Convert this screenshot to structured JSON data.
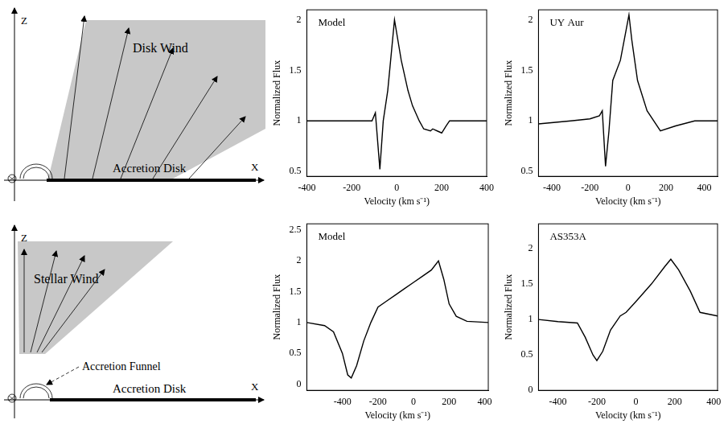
{
  "chart_data": [
    {
      "type": "line",
      "annotation": "Model",
      "x_label": "Velocity (km s⁻¹)",
      "y_label": "Normalized Flux",
      "color": "#000000",
      "grid": false,
      "x": [
        -400,
        -110,
        -95,
        -75,
        -60,
        -40,
        -10,
        20,
        50,
        70,
        100,
        120,
        150,
        160,
        180,
        200,
        220,
        235,
        400
      ],
      "values": [
        1.0,
        1.0,
        1.08,
        0.52,
        1.0,
        1.3,
        2.0,
        1.6,
        1.3,
        1.15,
        1.0,
        0.92,
        0.9,
        0.92,
        0.9,
        0.88,
        0.95,
        1.0,
        1.0
      ],
      "xlim": [
        -400,
        400
      ],
      "xticks": [
        -400,
        -200,
        0,
        200,
        400
      ],
      "ylim": [
        0.45,
        2.1
      ],
      "yticks": [
        0.5,
        1,
        1.5,
        2
      ]
    },
    {
      "type": "line",
      "annotation": "UY Aur",
      "x_label": "Velocity (km s⁻¹)",
      "y_label": "Normalized Flux",
      "color": "#000000",
      "grid": false,
      "x": [
        -470,
        -300,
        -200,
        -150,
        -135,
        -118,
        -100,
        -80,
        -40,
        -10,
        5,
        20,
        50,
        100,
        170,
        250,
        350,
        470
      ],
      "values": [
        0.97,
        1.0,
        1.02,
        1.05,
        1.1,
        0.55,
        0.9,
        1.4,
        1.6,
        1.9,
        2.05,
        1.8,
        1.4,
        1.1,
        0.9,
        0.95,
        1.0,
        1.0
      ],
      "xlim": [
        -470,
        470
      ],
      "xticks": [
        -400,
        -200,
        0,
        200,
        400
      ],
      "ylim": [
        0.45,
        2.1
      ],
      "yticks": [
        0.5,
        1,
        1.5,
        2
      ]
    },
    {
      "type": "line",
      "annotation": "Model",
      "x_label": "Velocity (km s⁻¹)",
      "y_label": "Normalized Flux",
      "color": "#000000",
      "grid": false,
      "x": [
        -600,
        -500,
        -450,
        -400,
        -370,
        -350,
        -320,
        -280,
        -240,
        -200,
        -150,
        -100,
        -50,
        0,
        50,
        100,
        140,
        170,
        200,
        240,
        300,
        420
      ],
      "values": [
        1.0,
        0.95,
        0.85,
        0.5,
        0.15,
        0.1,
        0.3,
        0.7,
        1.0,
        1.25,
        1.35,
        1.45,
        1.55,
        1.65,
        1.75,
        1.85,
        2.0,
        1.7,
        1.3,
        1.1,
        1.02,
        1.0
      ],
      "xlim": [
        -600,
        420
      ],
      "xticks": [
        -400,
        -200,
        0,
        200,
        400
      ],
      "ylim": [
        -0.1,
        2.6
      ],
      "yticks": [
        0,
        0.5,
        1,
        1.5,
        2,
        2.5
      ]
    },
    {
      "type": "line",
      "annotation": "AS353A",
      "x_label": "Velocity (km s⁻¹)",
      "y_label": "Normalized Flux",
      "color": "#000000",
      "grid": false,
      "x": [
        -500,
        -400,
        -300,
        -260,
        -220,
        -200,
        -170,
        -130,
        -80,
        -50,
        0,
        80,
        150,
        180,
        220,
        280,
        330,
        420
      ],
      "values": [
        1.0,
        0.97,
        0.95,
        0.75,
        0.5,
        0.42,
        0.55,
        0.85,
        1.05,
        1.1,
        1.25,
        1.5,
        1.75,
        1.85,
        1.7,
        1.4,
        1.1,
        1.05
      ],
      "xlim": [
        -500,
        420
      ],
      "xticks": [
        -400,
        -200,
        0,
        200,
        400
      ],
      "ylim": [
        0,
        2.35
      ],
      "yticks": [
        0,
        0.5,
        1,
        1.5,
        2
      ]
    }
  ],
  "diagrams": [
    {
      "z_label": "Z",
      "x_label": "X",
      "wind_label": "Disk Wind",
      "disk_label": "Accretion Disk"
    },
    {
      "z_label": "Z",
      "x_label": "X",
      "wind_label": "Stellar Wind",
      "funnel_label": "Accretion Funnel",
      "disk_label": "Accretion Disk"
    }
  ]
}
